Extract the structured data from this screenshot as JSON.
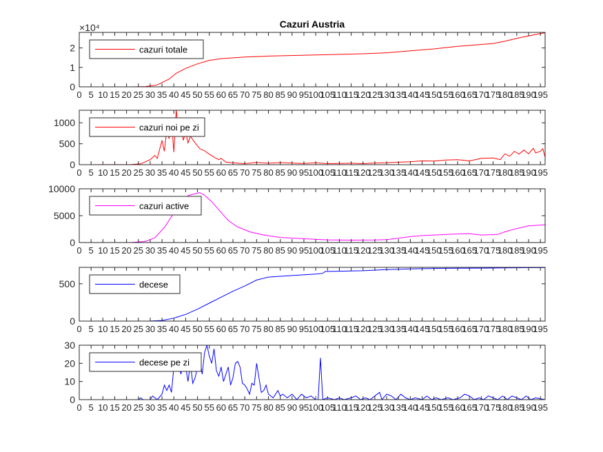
{
  "figure": {
    "title": "Cazuri Austria"
  },
  "chart_data": [
    {
      "type": "line",
      "title": "Cazuri Austria",
      "legend": "cazuri totale",
      "color": "#ff0000",
      "xlim": [
        0,
        197
      ],
      "ylim": [
        0,
        28000
      ],
      "yticks": [
        0,
        10000,
        20000
      ],
      "ytick_labels": [
        "0",
        "1",
        "2"
      ],
      "exponent_label": "×10⁴",
      "legend_position": "top-left",
      "grid": false,
      "keypoints": [
        [
          0,
          0
        ],
        [
          22,
          10
        ],
        [
          28,
          150
        ],
        [
          33,
          1000
        ],
        [
          38,
          4000
        ],
        [
          41,
          7000
        ],
        [
          45,
          9500
        ],
        [
          50,
          11800
        ],
        [
          55,
          13600
        ],
        [
          60,
          14500
        ],
        [
          70,
          15300
        ],
        [
          80,
          15800
        ],
        [
          100,
          16400
        ],
        [
          120,
          17000
        ],
        [
          130,
          17500
        ],
        [
          140,
          18500
        ],
        [
          150,
          19500
        ],
        [
          160,
          20800
        ],
        [
          175,
          22300
        ],
        [
          180,
          23500
        ],
        [
          187,
          25500
        ],
        [
          195,
          27400
        ],
        [
          197,
          27800
        ]
      ]
    },
    {
      "type": "line",
      "legend": "cazuri noi pe zi",
      "color": "#ff0000",
      "xlim": [
        0,
        197
      ],
      "ylim": [
        0,
        1300
      ],
      "yticks": [
        0,
        500,
        1000
      ],
      "ytick_labels": [
        "0",
        "500",
        "1000"
      ],
      "legend_position": "top-left",
      "grid": false,
      "keypoints": [
        [
          0,
          0
        ],
        [
          22,
          5
        ],
        [
          26,
          20
        ],
        [
          30,
          120
        ],
        [
          32,
          220
        ],
        [
          33,
          150
        ],
        [
          35,
          580
        ],
        [
          36,
          320
        ],
        [
          37,
          850
        ],
        [
          38,
          620
        ],
        [
          39,
          1050
        ],
        [
          40,
          300
        ],
        [
          41,
          1320
        ],
        [
          42,
          720
        ],
        [
          43,
          920
        ],
        [
          44,
          580
        ],
        [
          45,
          780
        ],
        [
          46,
          520
        ],
        [
          47,
          680
        ],
        [
          49,
          520
        ],
        [
          51,
          380
        ],
        [
          53,
          330
        ],
        [
          55,
          250
        ],
        [
          57,
          180
        ],
        [
          59,
          120
        ],
        [
          60,
          150
        ],
        [
          62,
          60
        ],
        [
          65,
          45
        ],
        [
          70,
          25
        ],
        [
          75,
          55
        ],
        [
          80,
          35
        ],
        [
          85,
          50
        ],
        [
          90,
          40
        ],
        [
          95,
          30
        ],
        [
          100,
          45
        ],
        [
          105,
          25
        ],
        [
          110,
          30
        ],
        [
          115,
          35
        ],
        [
          120,
          25
        ],
        [
          125,
          40
        ],
        [
          130,
          45
        ],
        [
          135,
          60
        ],
        [
          140,
          70
        ],
        [
          145,
          90
        ],
        [
          150,
          85
        ],
        [
          155,
          110
        ],
        [
          160,
          120
        ],
        [
          165,
          90
        ],
        [
          170,
          150
        ],
        [
          175,
          160
        ],
        [
          178,
          120
        ],
        [
          180,
          260
        ],
        [
          182,
          200
        ],
        [
          184,
          320
        ],
        [
          186,
          250
        ],
        [
          188,
          350
        ],
        [
          190,
          260
        ],
        [
          192,
          390
        ],
        [
          193,
          280
        ],
        [
          195,
          320
        ],
        [
          196,
          380
        ],
        [
          197,
          180
        ]
      ]
    },
    {
      "type": "line",
      "legend": "cazuri active",
      "color": "#ff00ff",
      "xlim": [
        0,
        197
      ],
      "ylim": [
        0,
        10000
      ],
      "yticks": [
        0,
        5000,
        10000
      ],
      "ytick_labels": [
        "0",
        "5000",
        "10000"
      ],
      "legend_position": "top-left",
      "grid": false,
      "keypoints": [
        [
          0,
          0
        ],
        [
          22,
          10
        ],
        [
          28,
          200
        ],
        [
          32,
          900
        ],
        [
          36,
          2800
        ],
        [
          40,
          5500
        ],
        [
          43,
          7500
        ],
        [
          46,
          8700
        ],
        [
          49,
          9100
        ],
        [
          51,
          9300
        ],
        [
          53,
          8800
        ],
        [
          56,
          7600
        ],
        [
          60,
          5600
        ],
        [
          63,
          4100
        ],
        [
          67,
          2900
        ],
        [
          72,
          2000
        ],
        [
          78,
          1400
        ],
        [
          85,
          950
        ],
        [
          95,
          700
        ],
        [
          105,
          500
        ],
        [
          115,
          450
        ],
        [
          125,
          480
        ],
        [
          130,
          550
        ],
        [
          135,
          800
        ],
        [
          140,
          1100
        ],
        [
          145,
          1300
        ],
        [
          150,
          1400
        ],
        [
          160,
          1600
        ],
        [
          165,
          1650
        ],
        [
          170,
          1400
        ],
        [
          177,
          1500
        ],
        [
          180,
          2000
        ],
        [
          185,
          2600
        ],
        [
          190,
          3100
        ],
        [
          197,
          3300
        ]
      ]
    },
    {
      "type": "line",
      "legend": "decese",
      "color": "#0000ff",
      "xlim": [
        0,
        197
      ],
      "ylim": [
        0,
        720
      ],
      "yticks": [
        0,
        500
      ],
      "ytick_labels": [
        "0",
        "500"
      ],
      "legend_position": "top-left",
      "grid": false,
      "keypoints": [
        [
          0,
          0
        ],
        [
          30,
          1
        ],
        [
          35,
          8
        ],
        [
          40,
          40
        ],
        [
          45,
          90
        ],
        [
          50,
          160
        ],
        [
          55,
          240
        ],
        [
          60,
          320
        ],
        [
          65,
          400
        ],
        [
          70,
          470
        ],
        [
          75,
          550
        ],
        [
          80,
          590
        ],
        [
          90,
          610
        ],
        [
          100,
          630
        ],
        [
          103,
          640
        ],
        [
          104,
          665
        ],
        [
          110,
          668
        ],
        [
          120,
          675
        ],
        [
          130,
          690
        ],
        [
          140,
          700
        ],
        [
          150,
          705
        ],
        [
          160,
          708
        ],
        [
          170,
          710
        ],
        [
          180,
          713
        ],
        [
          190,
          715
        ],
        [
          197,
          716
        ]
      ]
    },
    {
      "type": "line",
      "legend": "decese pe zi",
      "color": "#0000ff",
      "xlim": [
        0,
        197
      ],
      "ylim": [
        0,
        30
      ],
      "yticks": [
        0,
        10,
        20,
        30
      ],
      "ytick_labels": [
        "0",
        "10",
        "20",
        "30"
      ],
      "legend_position": "top-left",
      "grid": false,
      "keypoints": [
        [
          0,
          0
        ],
        [
          25,
          0
        ],
        [
          26,
          1
        ],
        [
          27,
          0
        ],
        [
          30,
          0
        ],
        [
          31,
          2
        ],
        [
          32,
          1
        ],
        [
          33,
          0
        ],
        [
          35,
          3
        ],
        [
          36,
          8
        ],
        [
          37,
          5
        ],
        [
          38,
          8
        ],
        [
          39,
          4
        ],
        [
          40,
          18
        ],
        [
          41,
          16
        ],
        [
          42,
          20
        ],
        [
          43,
          14
        ],
        [
          44,
          22
        ],
        [
          45,
          18
        ],
        [
          46,
          10
        ],
        [
          47,
          20
        ],
        [
          48,
          9
        ],
        [
          49,
          12
        ],
        [
          50,
          18
        ],
        [
          51,
          22
        ],
        [
          52,
          14
        ],
        [
          53,
          26
        ],
        [
          54,
          30
        ],
        [
          55,
          24
        ],
        [
          56,
          20
        ],
        [
          57,
          28
        ],
        [
          58,
          16
        ],
        [
          59,
          13
        ],
        [
          60,
          18
        ],
        [
          61,
          10
        ],
        [
          62,
          14
        ],
        [
          63,
          18
        ],
        [
          64,
          8
        ],
        [
          65,
          12
        ],
        [
          66,
          20
        ],
        [
          67,
          21
        ],
        [
          68,
          18
        ],
        [
          69,
          9
        ],
        [
          70,
          8
        ],
        [
          71,
          6
        ],
        [
          72,
          3
        ],
        [
          73,
          9
        ],
        [
          74,
          8
        ],
        [
          75,
          20
        ],
        [
          76,
          12
        ],
        [
          77,
          4
        ],
        [
          78,
          5
        ],
        [
          79,
          8
        ],
        [
          80,
          3
        ],
        [
          82,
          1
        ],
        [
          84,
          5
        ],
        [
          85,
          2
        ],
        [
          86,
          3
        ],
        [
          88,
          1
        ],
        [
          90,
          3
        ],
        [
          92,
          0
        ],
        [
          94,
          3
        ],
        [
          96,
          1
        ],
        [
          98,
          2
        ],
        [
          99,
          1
        ],
        [
          100,
          0
        ],
        [
          101,
          0
        ],
        [
          102,
          23
        ],
        [
          103,
          0
        ],
        [
          105,
          1
        ],
        [
          108,
          0
        ],
        [
          110,
          1
        ],
        [
          112,
          0
        ],
        [
          115,
          1
        ],
        [
          117,
          2
        ],
        [
          119,
          0
        ],
        [
          121,
          1
        ],
        [
          123,
          0
        ],
        [
          125,
          2
        ],
        [
          127,
          4
        ],
        [
          128,
          0
        ],
        [
          130,
          3
        ],
        [
          132,
          2
        ],
        [
          134,
          0
        ],
        [
          136,
          3
        ],
        [
          138,
          1
        ],
        [
          140,
          0
        ],
        [
          142,
          1
        ],
        [
          145,
          0
        ],
        [
          147,
          2
        ],
        [
          149,
          0
        ],
        [
          151,
          1
        ],
        [
          153,
          0
        ],
        [
          156,
          1
        ],
        [
          158,
          0
        ],
        [
          161,
          1
        ],
        [
          163,
          3
        ],
        [
          165,
          2
        ],
        [
          167,
          0
        ],
        [
          169,
          1
        ],
        [
          171,
          0
        ],
        [
          173,
          2
        ],
        [
          175,
          1
        ],
        [
          177,
          0
        ],
        [
          179,
          2
        ],
        [
          181,
          0
        ],
        [
          183,
          2
        ],
        [
          185,
          1
        ],
        [
          187,
          0
        ],
        [
          189,
          2
        ],
        [
          191,
          0
        ],
        [
          193,
          1
        ],
        [
          197,
          0
        ]
      ]
    }
  ],
  "x_tick_labels": [
    "0",
    "5",
    "10",
    "15",
    "20",
    "25",
    "30",
    "35",
    "40",
    "45",
    "50",
    "55",
    "60",
    "65",
    "70",
    "75",
    "80",
    "85",
    "90",
    "95",
    "100",
    "105",
    "110",
    "115",
    "120",
    "125",
    "130",
    "135",
    "140",
    "145",
    "150",
    "155",
    "160",
    "165",
    "170",
    "175",
    "180",
    "185",
    "190",
    "195"
  ]
}
